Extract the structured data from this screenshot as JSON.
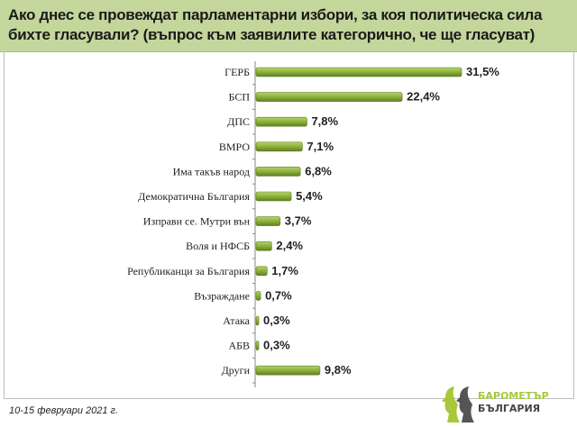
{
  "header": {
    "title": "Ако днес се провеждат парламентарни избори, за коя политическа сила бихте гласували? (въпрос към заявилите категорично, че ще гласуват)"
  },
  "footer": {
    "date": "10-15 февруари 2021 г.",
    "logo_line1": "БАРОМЕТЪР",
    "logo_line2": "БЪЛГАРИЯ"
  },
  "colors": {
    "bar": "#8cb03c",
    "bar_dark": "#5f7f22",
    "header": "#c3d69b"
  },
  "chart_data": {
    "type": "bar",
    "orientation": "horizontal",
    "title": "Ако днес се провеждат парламентарни избори, за коя политическа сила бихте гласували? (въпрос към заявилите категорично, че ще гласуват)",
    "categories": [
      "ГЕРБ",
      "БСП",
      "ДПС",
      "ВМРО",
      "Има такъв народ",
      "Демократична България",
      "Изправи се. Мутри вън",
      "Воля и НФСБ",
      "Републиканци за България",
      "Възраждане",
      "Атака",
      "АБВ",
      "Други"
    ],
    "values": [
      31.5,
      22.4,
      7.8,
      7.1,
      6.8,
      5.4,
      3.7,
      2.4,
      1.7,
      0.7,
      0.3,
      0.3,
      9.8
    ],
    "labels": [
      "31,5%",
      "22,4%",
      "7,8%",
      "7,1%",
      "6,8%",
      "5,4%",
      "3,7%",
      "2,4%",
      "1,7%",
      "0,7%",
      "0,3%",
      "0,3%",
      "9,8%"
    ],
    "xlim": [
      0,
      35
    ],
    "grid": false,
    "legend": "none"
  }
}
